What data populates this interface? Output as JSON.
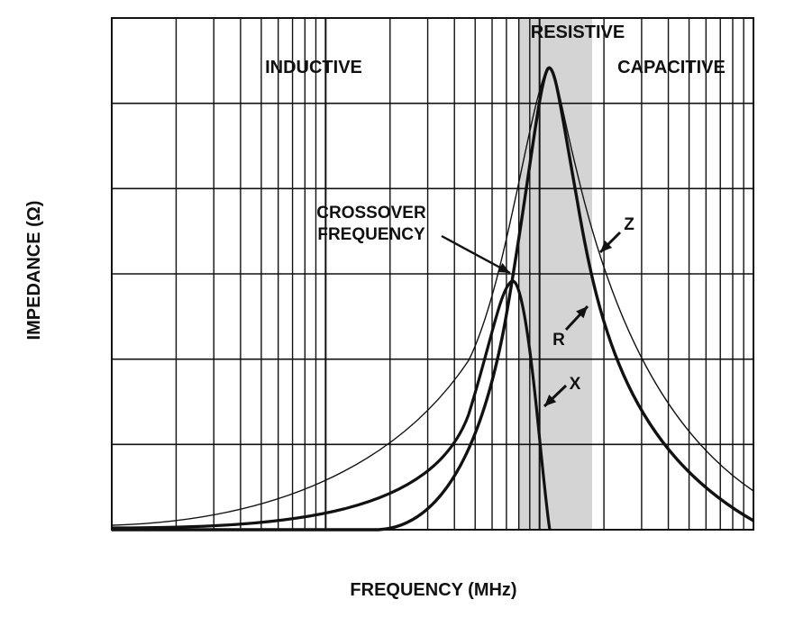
{
  "chart_data": {
    "type": "line",
    "title": "",
    "xlabel": "FREQUENCY (MHz)",
    "ylabel": "IMPEDANCE (Ω)",
    "x_scale": "log",
    "x_decades": 3,
    "y_divisions": 6,
    "grid": true,
    "axis_tick_labels": false,
    "regions": [
      {
        "name": "INDUCTIVE"
      },
      {
        "name": "RESISTIVE",
        "shaded": true,
        "fill": "#d4d4d4"
      },
      {
        "name": "CAPACITIVE"
      }
    ],
    "series": [
      {
        "name": "Z",
        "stroke": "thin"
      },
      {
        "name": "R",
        "stroke": "thick"
      },
      {
        "name": "X",
        "stroke": "thick"
      }
    ],
    "annotations": [
      {
        "target": "crossover",
        "lines": [
          "CROSSOVER",
          "FREQUENCY"
        ]
      },
      {
        "target": "Z",
        "text": "Z"
      },
      {
        "target": "R",
        "text": "R"
      },
      {
        "target": "X",
        "text": "X"
      }
    ]
  }
}
